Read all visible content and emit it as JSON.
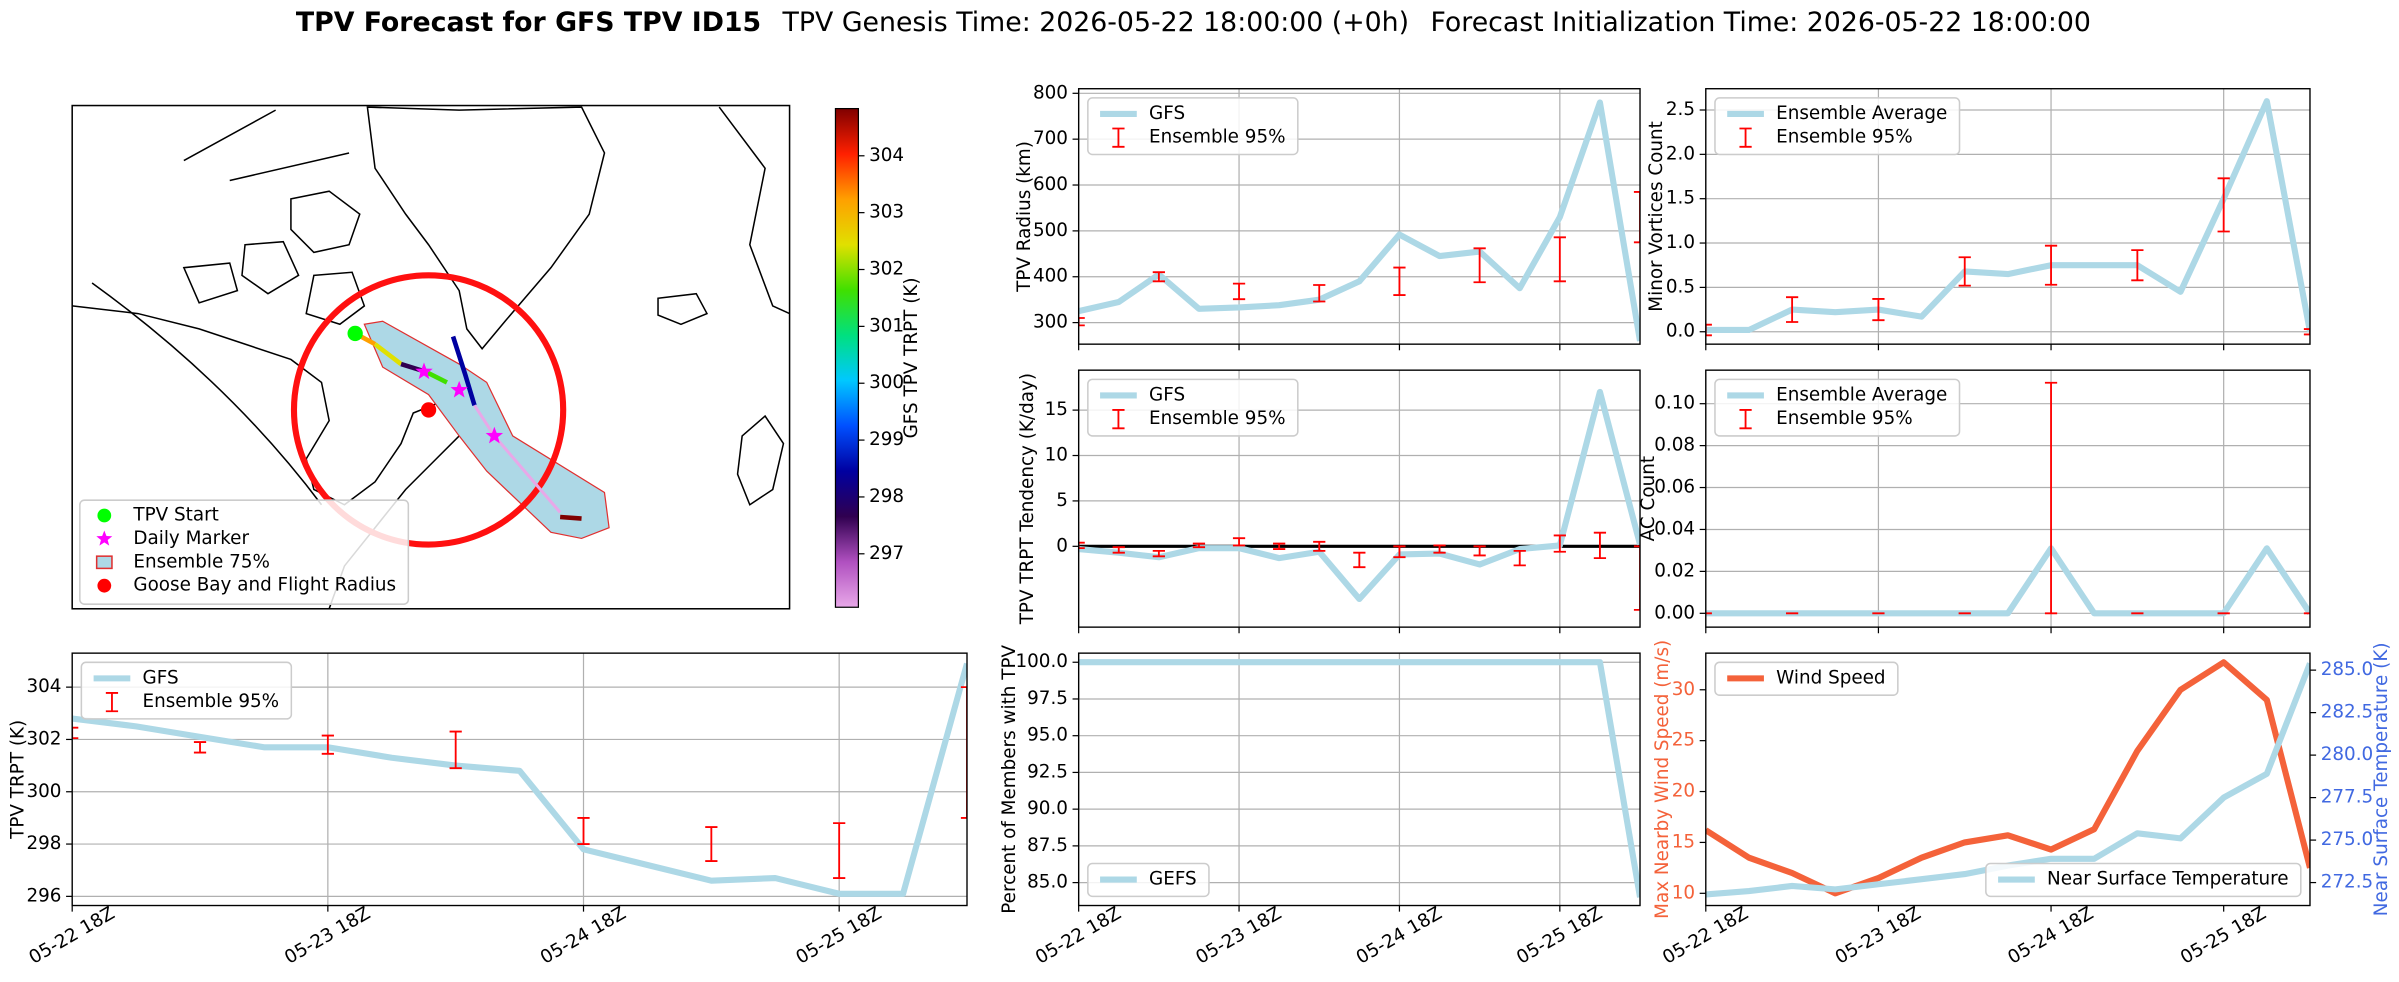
{
  "title": {
    "bold": "TPV Forecast for GFS TPV ID15",
    "genesis": "TPV Genesis Time: 2026-05-22 18:00:00 (+0h)",
    "init": "Forecast Initialization Time: 2026-05-22 18:00:00"
  },
  "chart_data": [
    {
      "type": "map",
      "colorbar": {
        "label": "GFS TPV TRPT (K)",
        "lim": [
          296.06,
          304.83
        ],
        "ticks": [
          297,
          298,
          299,
          300,
          301,
          302,
          303,
          304
        ],
        "colors": [
          "#e8a8e8",
          "#b050c0",
          "#300050",
          "#0000a0",
          "#0050ff",
          "#00c8ff",
          "#00e080",
          "#40e000",
          "#e0e000",
          "#ffa000",
          "#ff2000",
          "#800000"
        ]
      },
      "legend": [
        {
          "label": "TPV Start",
          "marker": "circle",
          "color": "#00ff00"
        },
        {
          "label": "Daily Marker",
          "marker": "star",
          "color": "#ff00ff"
        },
        {
          "label": "Ensemble 75%",
          "marker": "patch",
          "color": "#add8e6",
          "edge": "#e03030"
        },
        {
          "label": "Goose Bay and Flight Radius",
          "marker": "circle",
          "color": "#ff0000"
        }
      ]
    },
    {
      "type": "line",
      "ylabel": "TPV Radius (km)",
      "x": [
        0,
        6,
        12,
        18,
        24,
        30,
        36,
        42,
        48,
        54,
        60,
        66,
        72,
        78,
        84
      ],
      "xlim": [
        0,
        84
      ],
      "xticks": [
        0,
        24,
        48,
        72
      ],
      "ylim": [
        253,
        810
      ],
      "yticks": [
        300,
        400,
        500,
        600,
        700,
        800
      ],
      "grid": true,
      "legend": "upper left",
      "series": [
        {
          "name": "GFS",
          "color": "#add8e6",
          "values": [
            325,
            345,
            405,
            330,
            333,
            338,
            350,
            390,
            492,
            445,
            455,
            375,
            530,
            780,
            260
          ]
        },
        {
          "name": "Ensemble 95%",
          "color": "#ff0000",
          "style": "errorbar",
          "x": [
            0,
            12,
            24,
            36,
            48,
            60,
            72,
            84
          ],
          "values": [
            302,
            400,
            368,
            364,
            390,
            425,
            438,
            530
          ],
          "errors": [
            8,
            10,
            17,
            18,
            30,
            37,
            48,
            55
          ]
        }
      ]
    },
    {
      "type": "line",
      "ylabel": "Minor Vortices Count",
      "x": [
        0,
        6,
        12,
        18,
        24,
        30,
        36,
        42,
        48,
        54,
        60,
        66,
        72,
        78,
        84
      ],
      "xlim": [
        0,
        84
      ],
      "xticks": [
        0,
        24,
        48,
        72
      ],
      "ylim": [
        -0.14,
        2.74
      ],
      "yticks": [
        {
          "value": 0,
          "label": "0.0"
        },
        {
          "value": 0.5,
          "label": "0.5"
        },
        {
          "value": 1,
          "label": "1.0"
        },
        {
          "value": 1.5,
          "label": "1.5"
        },
        {
          "value": 2,
          "label": "2.0"
        },
        {
          "value": 2.5,
          "label": "2.5"
        }
      ],
      "grid": true,
      "legend": "upper left",
      "series": [
        {
          "name": "Ensemble Average",
          "color": "#add8e6",
          "values": [
            0.02,
            0.02,
            0.25,
            0.22,
            0.25,
            0.17,
            0.68,
            0.65,
            0.75,
            0.75,
            0.75,
            0.45,
            1.5,
            2.6,
            0.0
          ]
        },
        {
          "name": "Ensemble 95%",
          "color": "#ff0000",
          "style": "errorbar",
          "x": [
            0,
            12,
            24,
            36,
            48,
            60,
            72,
            84
          ],
          "values": [
            0.02,
            0.25,
            0.25,
            0.68,
            0.75,
            0.75,
            1.43,
            0.0
          ],
          "errors": [
            0.06,
            0.14,
            0.12,
            0.16,
            0.22,
            0.17,
            0.3,
            0.03
          ]
        }
      ]
    },
    {
      "type": "line",
      "ylabel": "TPV TRPT Tendency (K/day)",
      "x": [
        0,
        6,
        12,
        18,
        24,
        30,
        36,
        42,
        48,
        54,
        60,
        66,
        72,
        78,
        84
      ],
      "xlim": [
        0,
        84
      ],
      "xticks": [
        0,
        24,
        48,
        72
      ],
      "ylim": [
        -8.9,
        19.4
      ],
      "yticks": [
        0,
        5,
        10,
        15
      ],
      "grid": true,
      "legend": "upper left",
      "hline": 0,
      "series": [
        {
          "name": "GFS",
          "color": "#add8e6",
          "values": [
            -0.3,
            -0.7,
            -1.2,
            -0.2,
            -0.2,
            -1.3,
            -0.6,
            -5.8,
            -0.9,
            -0.8,
            -2.0,
            -0.3,
            0.1,
            17,
            0.2
          ]
        },
        {
          "name": "Ensemble 95%",
          "color": "#ff0000",
          "style": "errorbar",
          "x": [
            0,
            6,
            12,
            18,
            24,
            30,
            36,
            42,
            48,
            54,
            60,
            66,
            72,
            78,
            84
          ],
          "values": [
            0.1,
            -0.4,
            -0.8,
            0.1,
            0.5,
            0.0,
            0.0,
            -1.5,
            -0.6,
            -0.3,
            -0.5,
            -1.3,
            0.3,
            0.1,
            -3.5
          ],
          "errors": [
            0.3,
            0.3,
            0.3,
            0.2,
            0.4,
            0.3,
            0.5,
            0.8,
            0.6,
            0.4,
            0.5,
            0.8,
            0.9,
            1.4,
            3.5
          ]
        }
      ]
    },
    {
      "type": "line",
      "ylabel": "AC Count",
      "x": [
        0,
        6,
        12,
        18,
        24,
        30,
        36,
        42,
        48,
        54,
        60,
        66,
        72,
        78,
        84
      ],
      "xlim": [
        0,
        84
      ],
      "xticks": [
        0,
        24,
        48,
        72
      ],
      "ylim": [
        -0.0066,
        0.116
      ],
      "yticks": [
        {
          "value": 0,
          "label": "0.00"
        },
        {
          "value": 0.02,
          "label": "0.02"
        },
        {
          "value": 0.04,
          "label": "0.04"
        },
        {
          "value": 0.06,
          "label": "0.06"
        },
        {
          "value": 0.08,
          "label": "0.08"
        },
        {
          "value": 0.1,
          "label": "0.10"
        }
      ],
      "grid": true,
      "legend": "upper left",
      "series": [
        {
          "name": "Ensemble Average",
          "color": "#add8e6",
          "values": [
            0,
            0,
            0,
            0,
            0,
            0,
            0,
            0,
            0.031,
            0,
            0,
            0,
            0,
            0.031,
            0
          ]
        },
        {
          "name": "Ensemble 95%",
          "color": "#ff0000",
          "style": "errorbar",
          "x": [
            0,
            12,
            24,
            36,
            48,
            60,
            72,
            84
          ],
          "values": [
            0,
            0,
            0,
            0,
            0.055,
            0,
            0,
            0
          ],
          "errors": [
            0,
            0,
            0,
            0,
            0.055,
            0,
            0,
            0
          ]
        }
      ]
    },
    {
      "type": "line",
      "ylabel": "TPV TRPT (K)",
      "x": [
        0,
        6,
        12,
        18,
        24,
        30,
        36,
        42,
        48,
        54,
        60,
        66,
        72,
        78,
        84
      ],
      "xlim": [
        0,
        84
      ],
      "xticks": [
        {
          "value": 0,
          "label": "05-22 18Z"
        },
        {
          "value": 24,
          "label": "05-23 18Z"
        },
        {
          "value": 48,
          "label": "05-24 18Z"
        },
        {
          "value": 72,
          "label": "05-25 18Z"
        }
      ],
      "ylim": [
        295.65,
        305.3
      ],
      "yticks": [
        296,
        298,
        300,
        302,
        304
      ],
      "grid": true,
      "legend": "upper left",
      "series": [
        {
          "name": "GFS",
          "color": "#add8e6",
          "values": [
            302.8,
            302.5,
            302.1,
            301.7,
            301.7,
            301.3,
            301.0,
            300.8,
            297.8,
            297.2,
            296.6,
            296.7,
            296.1,
            296.1,
            304.9
          ]
        },
        {
          "name": "Ensemble 95%",
          "color": "#ff0000",
          "style": "errorbar",
          "x": [
            0,
            12,
            24,
            36,
            48,
            60,
            72,
            84
          ],
          "values": [
            302.25,
            301.7,
            301.8,
            301.6,
            298.5,
            298.0,
            297.75,
            301.5
          ],
          "errors": [
            0.2,
            0.2,
            0.35,
            0.7,
            0.5,
            0.65,
            1.05,
            2.5
          ]
        }
      ]
    },
    {
      "type": "line",
      "ylabel": "Percent of Members with TPV",
      "x": [
        0,
        6,
        12,
        18,
        24,
        30,
        36,
        42,
        48,
        54,
        60,
        66,
        72,
        78,
        84
      ],
      "xlim": [
        0,
        84
      ],
      "xticks": [
        {
          "value": 0,
          "label": "05-22 18Z"
        },
        {
          "value": 24,
          "label": "05-23 18Z"
        },
        {
          "value": 48,
          "label": "05-24 18Z"
        },
        {
          "value": 72,
          "label": "05-25 18Z"
        }
      ],
      "ylim": [
        83.44,
        100.62
      ],
      "yticks": [
        {
          "value": 85,
          "label": "85.0"
        },
        {
          "value": 87.5,
          "label": "87.5"
        },
        {
          "value": 90,
          "label": "90.0"
        },
        {
          "value": 92.5,
          "label": "92.5"
        },
        {
          "value": 95,
          "label": "95.0"
        },
        {
          "value": 97.5,
          "label": "97.5"
        },
        {
          "value": 100,
          "label": "100.0"
        }
      ],
      "grid": true,
      "legend": "lower left",
      "series": [
        {
          "name": "GEFS",
          "color": "#add8e6",
          "values": [
            100,
            100,
            100,
            100,
            100,
            100,
            100,
            100,
            100,
            100,
            100,
            100,
            100,
            100,
            84.0
          ]
        }
      ]
    },
    {
      "type": "line",
      "ylabel": "Max Nearby Wind Speed (m/s)",
      "y2label": "Near Surface Temperature (K)",
      "ylabel_color": "#f4623a",
      "y2label_color": "#4169e1",
      "x": [
        0,
        6,
        12,
        18,
        24,
        30,
        36,
        42,
        48,
        54,
        60,
        66,
        72,
        78,
        84
      ],
      "xlim": [
        0,
        84
      ],
      "xticks": [
        {
          "value": 0,
          "label": "05-22 18Z"
        },
        {
          "value": 24,
          "label": "05-23 18Z"
        },
        {
          "value": 48,
          "label": "05-24 18Z"
        },
        {
          "value": 72,
          "label": "05-25 18Z"
        }
      ],
      "ylim": [
        8.8,
        33.6
      ],
      "yticks": [
        10,
        15,
        20,
        25,
        30
      ],
      "y2lim": [
        271.15,
        286.0
      ],
      "y2ticks": [
        {
          "value": 272.5,
          "label": "272.5"
        },
        {
          "value": 275,
          "label": "275.0"
        },
        {
          "value": 277.5,
          "label": "277.5"
        },
        {
          "value": 280,
          "label": "280.0"
        },
        {
          "value": 282.5,
          "label": "282.5"
        },
        {
          "value": 285,
          "label": "285.0"
        }
      ],
      "grid": false,
      "legend": "upper left",
      "series": [
        {
          "name": "Wind Speed",
          "color": "#f4623a",
          "values": [
            16.2,
            13.5,
            12,
            10,
            11.5,
            13.5,
            15,
            15.7,
            14.3,
            16.3,
            24,
            30,
            32.7,
            29,
            12.5
          ]
        },
        {
          "name": "Near Surface Temperature",
          "color": "#add8e6",
          "axis": "y2",
          "legend": "lower right",
          "values": [
            271.8,
            272.0,
            272.3,
            272.1,
            272.4,
            272.7,
            273.0,
            273.5,
            273.9,
            273.9,
            275.4,
            275.1,
            277.5,
            278.9,
            285.4
          ]
        }
      ]
    }
  ]
}
